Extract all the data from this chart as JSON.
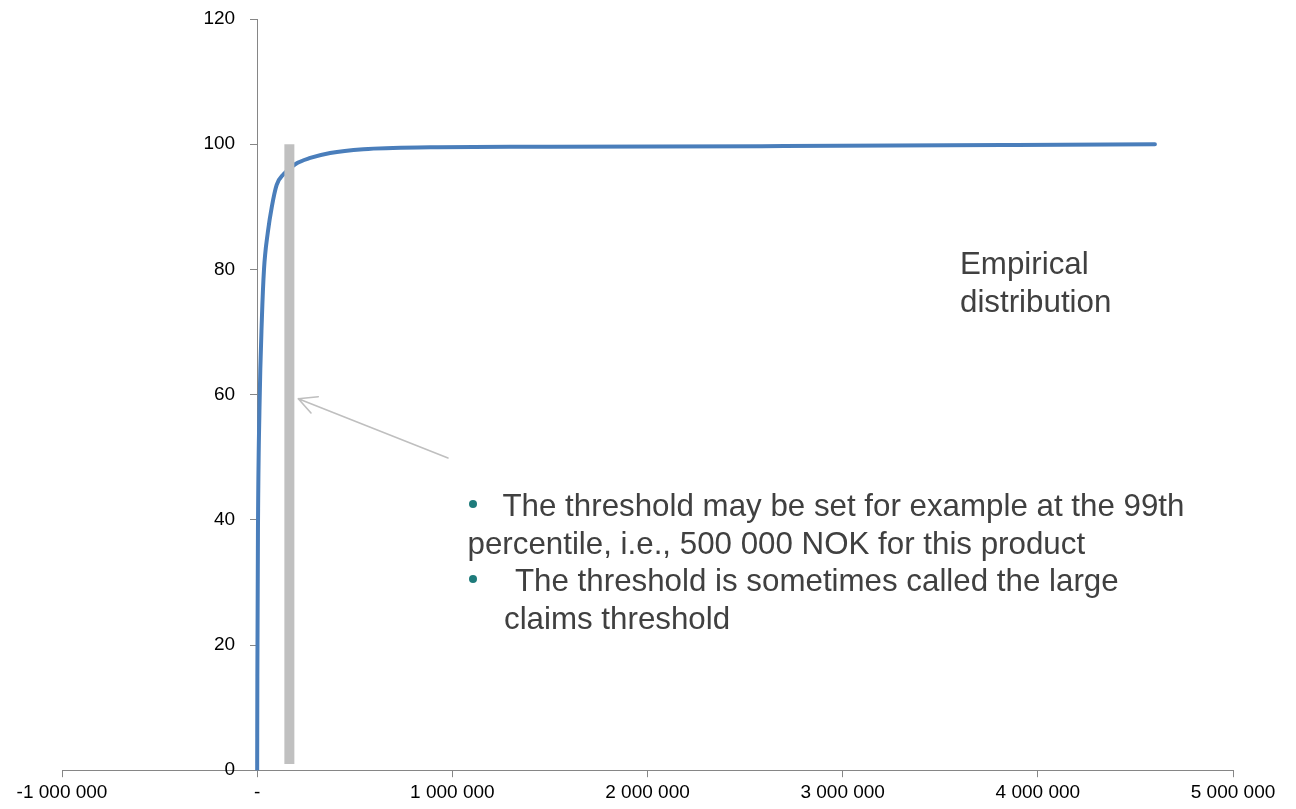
{
  "chart_data": {
    "type": "line",
    "series": [
      {
        "color": "#4a7ebb",
        "x": [
          0,
          1000,
          4000,
          12000,
          24000,
          35000,
          55000,
          75000,
          100000,
          135000,
          195000,
          272000,
          374000,
          544000,
          887000,
          1500000,
          2700000,
          4600000
        ],
        "values": [
          0,
          15,
          38,
          58,
          72,
          80,
          86,
          90,
          93.5,
          95.2,
          96.8,
          97.8,
          98.6,
          99.2,
          99.5,
          99.6,
          99.7,
          100
        ]
      },
      {
        "color": "#c0c0c0",
        "x": [
          165000,
          165000
        ],
        "values": [
          1,
          100
        ]
      }
    ],
    "xlim": [
      -1000000,
      5000000
    ],
    "xticks": [
      {
        "value": -1000000,
        "label": "-1 000 000"
      },
      {
        "value": 0,
        "label": "-"
      },
      {
        "value": 1000000,
        "label": "1 000 000"
      },
      {
        "value": 2000000,
        "label": "2 000 000"
      },
      {
        "value": 3000000,
        "label": "3 000 000"
      },
      {
        "value": 4000000,
        "label": "4 000 000"
      },
      {
        "value": 5000000,
        "label": "5 000 000"
      }
    ],
    "ylim": [
      0,
      120
    ],
    "yticks": [
      0,
      20,
      40,
      60,
      80,
      100,
      120
    ],
    "marker": "none",
    "annotations": [
      "Empirical distribution",
      "The threshold may be set for example at the 99th percentile, i.e., 500 000 NOK for this product",
      "The threshold is sometimes called the large claims threshold"
    ]
  }
}
